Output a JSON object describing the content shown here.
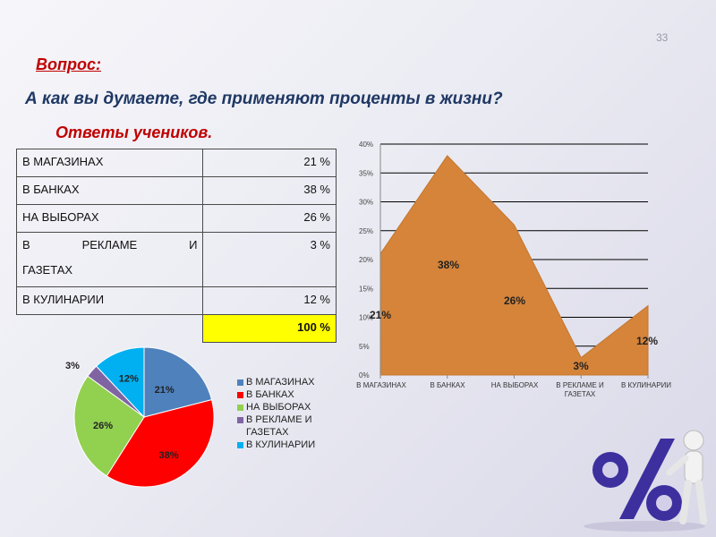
{
  "slide": {
    "number": "33"
  },
  "question": "Вопрос:",
  "subtitle": "А как вы думаете, где применяют проценты в жизни?",
  "answers_heading": "Ответы учеников.",
  "table": {
    "rows": [
      {
        "category": "В МАГАЗИНАХ",
        "value": "21 %"
      },
      {
        "category": "В БАНКАХ",
        "value": "38 %"
      },
      {
        "category": "НА ВЫБОРАХ",
        "value": "26 %"
      },
      {
        "category_words": [
          "В",
          "РЕКЛАМЕ",
          "И"
        ],
        "category_line2": "ГАЗЕТАХ",
        "value": "3 %"
      },
      {
        "category": "В КУЛИНАРИИ",
        "value": "12 %"
      }
    ],
    "total": "100 %"
  },
  "chart_data": [
    {
      "type": "pie",
      "categories": [
        "В МАГАЗИНАХ",
        "В БАНКАХ",
        "НА ВЫБОРАХ",
        "В РЕКЛАМЕ И ГАЗЕТАХ",
        "В КУЛИНАРИИ"
      ],
      "values": [
        21,
        38,
        26,
        3,
        12
      ],
      "data_labels": [
        "21%",
        "38%",
        "26%",
        "3%",
        "12%"
      ],
      "colors": [
        "#4f81bd",
        "#ff0000",
        "#92d050",
        "#8064a2",
        "#00b0f0"
      ],
      "legend": [
        "В МАГАЗИНАХ",
        "В БАНКАХ",
        "НА ВЫБОРАХ",
        "В РЕКЛАМЕ И ГАЗЕТАХ",
        "В КУЛИНАРИИ"
      ],
      "legend_placement": "right"
    },
    {
      "type": "area",
      "categories": [
        "В МАГАЗИНАХ",
        "В БАНКАХ",
        "НА ВЫБОРАХ",
        "В РЕКЛАМЕ И ГАЗЕТАХ",
        "В КУЛИНАРИИ"
      ],
      "values": [
        21,
        38,
        26,
        3,
        12
      ],
      "data_labels": [
        "21%",
        "38%",
        "26%",
        "3%",
        "12%"
      ],
      "yticks": [
        "0%",
        "5%",
        "10%",
        "15%",
        "20%",
        "25%",
        "30%",
        "35%",
        "40%"
      ],
      "ylim": [
        0,
        40
      ],
      "grid": true,
      "color": "#d5843a"
    }
  ]
}
